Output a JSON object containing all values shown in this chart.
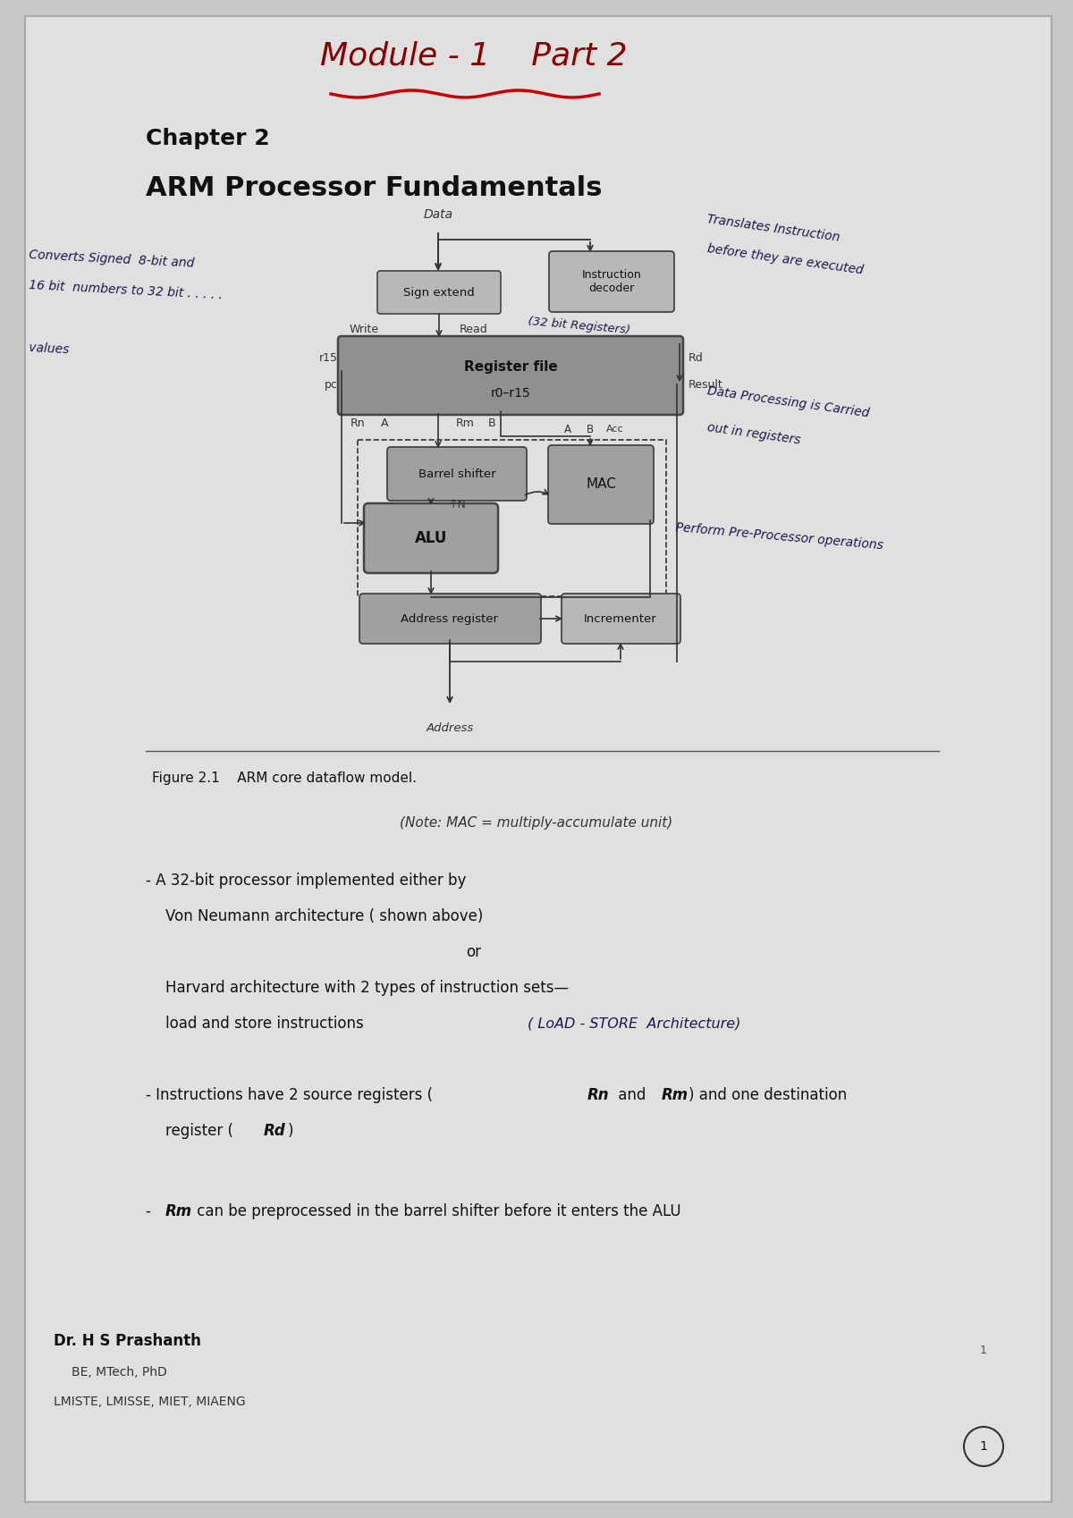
{
  "bg_color": "#c8c8c8",
  "paper_color": "#dcdcdc",
  "title_handwritten": "Module - 1    Part 2",
  "title_handwritten_color": "#8B0000",
  "chapter": "Chapter 2",
  "subtitle": "ARM Processor Fundamentals",
  "figure_caption": "Figure 2.1    ARM core dataflow model.",
  "note_mac": "(Note: MAC = multiply-accumulate unit)",
  "footer_name": "Dr. H S Prashanth",
  "footer_quals": "BE, MTech, PhD",
  "footer_inst": "LMISTE, LMISSE, MIET, MIAENG",
  "page_num": "1",
  "box_fill": "#b8b8b8",
  "box_fill_dark": "#a0a0a0",
  "box_edge": "#444444",
  "text_dark": "#111111",
  "text_mid": "#333333",
  "hand_color": "#1a1a4a"
}
